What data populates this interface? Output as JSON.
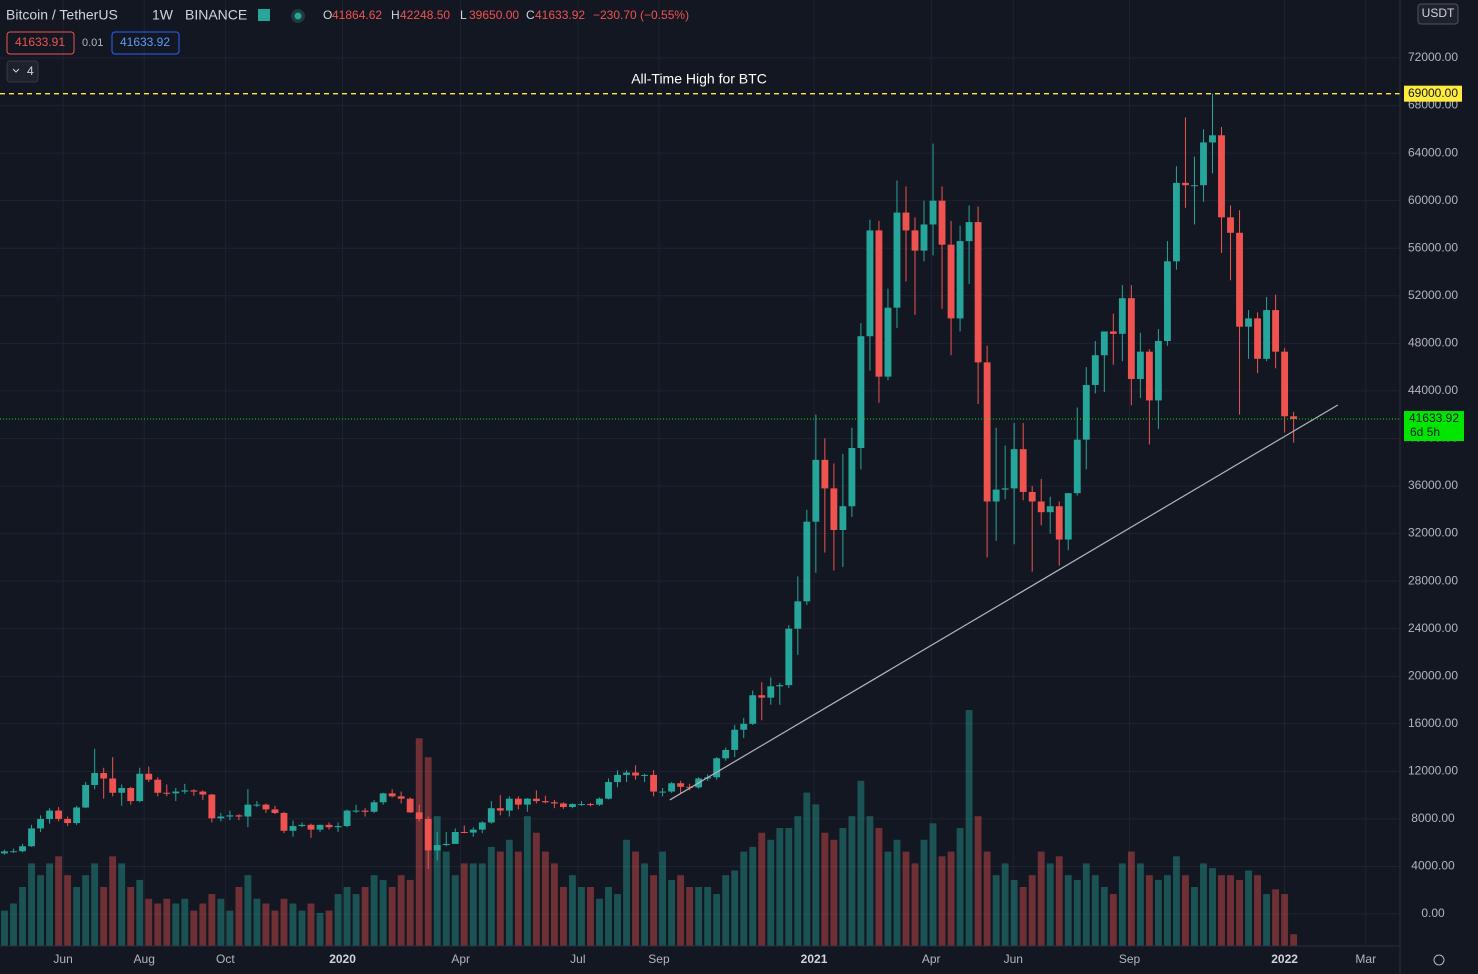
{
  "header": {
    "symbol": "Bitcoin / TetherUS",
    "interval": "1W",
    "exchange": "BINANCE",
    "ohlc": [
      [
        "O",
        "41864.62"
      ],
      [
        "H",
        "42248.50"
      ],
      [
        "L",
        "39650.00"
      ],
      [
        "C",
        "41633.92"
      ]
    ],
    "change": "−230.70 (−0.55%)",
    "bid": "41633.91",
    "spread": "0.01",
    "ask": "41633.92",
    "indicators": "4",
    "currency": "USDT",
    "countdown": "6d 5h"
  },
  "chart_data": {
    "type": "candlestick",
    "up_color": "#26a69a",
    "down_color": "#ef5350",
    "candles": [
      [
        5100,
        5400,
        5000,
        5270
      ],
      [
        5270,
        5500,
        5150,
        5280
      ],
      [
        5280,
        5900,
        5200,
        5700
      ],
      [
        5700,
        7500,
        5650,
        7200
      ],
      [
        7200,
        8300,
        6900,
        8000
      ],
      [
        8000,
        8900,
        7600,
        8700
      ],
      [
        8700,
        9000,
        7800,
        8000
      ],
      [
        8000,
        8200,
        7400,
        7650
      ],
      [
        7650,
        9100,
        7500,
        8960
      ],
      [
        8960,
        11100,
        8900,
        10850
      ],
      [
        10850,
        13900,
        10500,
        11860
      ],
      [
        11860,
        12300,
        9700,
        11400
      ],
      [
        11400,
        13200,
        9900,
        10200
      ],
      [
        10200,
        10900,
        9100,
        10600
      ],
      [
        10600,
        10700,
        9200,
        9500
      ],
      [
        9500,
        12300,
        9400,
        11800
      ],
      [
        11800,
        12400,
        11100,
        11300
      ],
      [
        11300,
        11500,
        9900,
        10200
      ],
      [
        10200,
        10900,
        9900,
        10150
      ],
      [
        10150,
        10600,
        9500,
        10300
      ],
      [
        10300,
        10950,
        10100,
        10400
      ],
      [
        10400,
        10500,
        9950,
        10300
      ],
      [
        10300,
        10400,
        9600,
        10050
      ],
      [
        10050,
        10100,
        7700,
        8050
      ],
      [
        8050,
        8500,
        7800,
        8200
      ],
      [
        8200,
        8700,
        7900,
        8300
      ],
      [
        8300,
        8400,
        7900,
        8200
      ],
      [
        8200,
        10500,
        7300,
        9200
      ],
      [
        9200,
        9500,
        9000,
        9200
      ],
      [
        9200,
        9300,
        8500,
        8800
      ],
      [
        8800,
        9100,
        8400,
        8500
      ],
      [
        8500,
        8600,
        6800,
        7000
      ],
      [
        7000,
        7850,
        6500,
        7400
      ],
      [
        7400,
        7700,
        7300,
        7500
      ],
      [
        7500,
        7600,
        6400,
        7100
      ],
      [
        7100,
        7500,
        6900,
        7500
      ],
      [
        7500,
        7700,
        7100,
        7300
      ],
      [
        7300,
        7700,
        6900,
        7400
      ],
      [
        7400,
        8800,
        7300,
        8700
      ],
      [
        8700,
        9200,
        8500,
        8700
      ],
      [
        8700,
        8900,
        8200,
        8600
      ],
      [
        8600,
        9600,
        8500,
        9400
      ],
      [
        9400,
        10200,
        9200,
        10150
      ],
      [
        10150,
        10500,
        9800,
        9900
      ],
      [
        9900,
        10300,
        9300,
        9700
      ],
      [
        9700,
        9800,
        8500,
        8550
      ],
      [
        8550,
        9200,
        7800,
        8000
      ],
      [
        8000,
        8200,
        3800,
        5350
      ],
      [
        5350,
        6900,
        4500,
        5800
      ],
      [
        5800,
        6900,
        5700,
        5900
      ],
      [
        5900,
        7200,
        5900,
        6900
      ],
      [
        6900,
        7450,
        6800,
        6850
      ],
      [
        6850,
        7300,
        6500,
        7100
      ],
      [
        7100,
        7800,
        6800,
        7700
      ],
      [
        7700,
        9500,
        7600,
        8900
      ],
      [
        8900,
        10000,
        8300,
        8700
      ],
      [
        8700,
        9900,
        8200,
        9700
      ],
      [
        9700,
        9900,
        8800,
        9200
      ],
      [
        9200,
        9750,
        8600,
        9700
      ],
      [
        9700,
        10400,
        9300,
        9500
      ],
      [
        9500,
        9950,
        9300,
        9400
      ],
      [
        9400,
        9600,
        8900,
        9300
      ],
      [
        9300,
        9400,
        8850,
        9000
      ],
      [
        9000,
        9300,
        8900,
        9250
      ],
      [
        9250,
        9500,
        9100,
        9250
      ],
      [
        9250,
        9350,
        9050,
        9200
      ],
      [
        9200,
        9800,
        9100,
        9700
      ],
      [
        9700,
        11400,
        9650,
        11100
      ],
      [
        11100,
        12100,
        10650,
        11700
      ],
      [
        11700,
        12100,
        11100,
        11900
      ],
      [
        11900,
        12500,
        11300,
        11650
      ],
      [
        11650,
        11800,
        11100,
        11700
      ],
      [
        11700,
        12100,
        9900,
        10300
      ],
      [
        10300,
        10600,
        9900,
        10300
      ],
      [
        10300,
        11100,
        10200,
        11000
      ],
      [
        11000,
        11200,
        10150,
        10700
      ],
      [
        10700,
        10950,
        10400,
        10650
      ],
      [
        10650,
        11500,
        10550,
        11400
      ],
      [
        11400,
        11750,
        11200,
        11500
      ],
      [
        11500,
        13200,
        11300,
        13100
      ],
      [
        13100,
        14000,
        12900,
        13800
      ],
      [
        13800,
        15900,
        13200,
        15500
      ],
      [
        15500,
        16500,
        14800,
        16000
      ],
      [
        16000,
        18800,
        15900,
        18400
      ],
      [
        18400,
        19500,
        16300,
        18200
      ],
      [
        18200,
        19900,
        17600,
        19150
      ],
      [
        19150,
        19450,
        17600,
        19250
      ],
      [
        19250,
        24300,
        19000,
        24000
      ],
      [
        24000,
        28400,
        21800,
        26300
      ],
      [
        26300,
        34000,
        26000,
        33000
      ],
      [
        33000,
        42000,
        28700,
        38200
      ],
      [
        38200,
        40000,
        30400,
        35800
      ],
      [
        35800,
        37900,
        28900,
        32300
      ],
      [
        32300,
        38700,
        29200,
        34300
      ],
      [
        34300,
        40900,
        33400,
        39200
      ],
      [
        39200,
        49700,
        37400,
        48600
      ],
      [
        48600,
        58400,
        45700,
        57500
      ],
      [
        57500,
        58300,
        43000,
        45200
      ],
      [
        45200,
        52600,
        44900,
        51000
      ],
      [
        51000,
        61700,
        49300,
        59000
      ],
      [
        59000,
        61200,
        53200,
        57500
      ],
      [
        57500,
        58600,
        50400,
        55800
      ],
      [
        55800,
        60000,
        54900,
        58000
      ],
      [
        58000,
        64800,
        55400,
        60000
      ],
      [
        60000,
        61200,
        50900,
        56300
      ],
      [
        56300,
        58300,
        47000,
        50100
      ],
      [
        50100,
        57900,
        49000,
        56600
      ],
      [
        56600,
        59600,
        53000,
        58200
      ],
      [
        58200,
        59500,
        42900,
        46400
      ],
      [
        46400,
        47800,
        30000,
        34700
      ],
      [
        34700,
        40900,
        31400,
        35700
      ],
      [
        35700,
        39400,
        34900,
        35800
      ],
      [
        35800,
        41300,
        31100,
        39100
      ],
      [
        39100,
        41300,
        34800,
        35500
      ],
      [
        35500,
        36000,
        28800,
        34700
      ],
      [
        34700,
        36600,
        32700,
        33800
      ],
      [
        33800,
        35100,
        32000,
        34300
      ],
      [
        34300,
        34700,
        29300,
        31500
      ],
      [
        31500,
        35400,
        30600,
        35400
      ],
      [
        35400,
        42600,
        35200,
        39900
      ],
      [
        39900,
        46000,
        37400,
        44500
      ],
      [
        44500,
        48200,
        43800,
        47000
      ],
      [
        47000,
        49000,
        43900,
        49000
      ],
      [
        49000,
        50500,
        46200,
        48800
      ],
      [
        48800,
        52900,
        46500,
        51800
      ],
      [
        51800,
        52900,
        42800,
        45000
      ],
      [
        45000,
        48900,
        43400,
        47300
      ],
      [
        47300,
        47500,
        39500,
        43200
      ],
      [
        43200,
        49200,
        40800,
        48200
      ],
      [
        48200,
        56600,
        47800,
        54900
      ],
      [
        54900,
        62900,
        54200,
        61500
      ],
      [
        61500,
        67000,
        59400,
        61300
      ],
      [
        61300,
        63700,
        58000,
        61300
      ],
      [
        61300,
        66000,
        59900,
        64900
      ],
      [
        64900,
        69000,
        62300,
        65500
      ],
      [
        65500,
        66200,
        55600,
        58600
      ],
      [
        58600,
        59600,
        53300,
        57300
      ],
      [
        57300,
        59200,
        42000,
        49400
      ],
      [
        49400,
        50800,
        46700,
        50100
      ],
      [
        50100,
        50600,
        45500,
        46700
      ],
      [
        46700,
        51900,
        46500,
        50800
      ],
      [
        50800,
        52100,
        45900,
        47300
      ],
      [
        47300,
        47600,
        40500,
        41864.62
      ],
      [
        41864.62,
        42248.5,
        39650,
        41633.92
      ]
    ],
    "volume": [
      15,
      18,
      25,
      35,
      30,
      35,
      38,
      30,
      25,
      30,
      35,
      25,
      38,
      35,
      25,
      28,
      20,
      18,
      20,
      18,
      20,
      15,
      18,
      22,
      20,
      15,
      25,
      30,
      20,
      18,
      15,
      20,
      18,
      15,
      18,
      14,
      15,
      22,
      25,
      22,
      25,
      30,
      28,
      25,
      30,
      28,
      88,
      80,
      55,
      40,
      30,
      35,
      35,
      35,
      42,
      40,
      45,
      40,
      55,
      48,
      40,
      35,
      25,
      30,
      25,
      25,
      20,
      25,
      22,
      45,
      40,
      35,
      30,
      40,
      28,
      30,
      25,
      25,
      25,
      22,
      30,
      32,
      40,
      42,
      48,
      45,
      50,
      50,
      55,
      65,
      60,
      48,
      45,
      50,
      55,
      70,
      55,
      50,
      40,
      45,
      40,
      35,
      45,
      52,
      38,
      40,
      50,
      100,
      55,
      40,
      30,
      35,
      28,
      25,
      30,
      40,
      35,
      38,
      30,
      28,
      35,
      30,
      25,
      22,
      35,
      40,
      35,
      30,
      28,
      30,
      38,
      30,
      25,
      35,
      33,
      30,
      30,
      28,
      32,
      30,
      22,
      24,
      22,
      5
    ],
    "xlim": [
      -0.5,
      154.8
    ],
    "xticks": [
      {
        "value": 6.5,
        "label": "Jun"
      },
      {
        "value": 15.5,
        "label": "Aug"
      },
      {
        "value": 24.5,
        "label": "Oct"
      },
      {
        "value": 37.5,
        "label": "2020"
      },
      {
        "value": 50.6,
        "label": "Apr"
      },
      {
        "value": 63.6,
        "label": "Jul"
      },
      {
        "value": 72.6,
        "label": "Sep"
      },
      {
        "value": 89.8,
        "label": "2021"
      },
      {
        "value": 102.8,
        "label": "Apr"
      },
      {
        "value": 111.9,
        "label": "Jun"
      },
      {
        "value": 124.8,
        "label": "Sep"
      },
      {
        "value": 142.0,
        "label": "2022"
      },
      {
        "value": 151.0,
        "label": "Mar"
      }
    ],
    "ylim": [
      -2690,
      76880
    ],
    "yticks": [
      {
        "value": 0,
        "label": "0.00"
      },
      {
        "value": 4000,
        "label": "4000.00"
      },
      {
        "value": 8000,
        "label": "8000.00"
      },
      {
        "value": 12000,
        "label": "12000.00"
      },
      {
        "value": 16000,
        "label": "16000.00"
      },
      {
        "value": 20000,
        "label": "20000.00"
      },
      {
        "value": 24000,
        "label": "24000.00"
      },
      {
        "value": 28000,
        "label": "28000.00"
      },
      {
        "value": 32000,
        "label": "32000.00"
      },
      {
        "value": 36000,
        "label": "36000.00"
      },
      {
        "value": 40000,
        "label": "40000.00"
      },
      {
        "value": 44000,
        "label": "44000.00"
      },
      {
        "value": 48000,
        "label": "48000.00"
      },
      {
        "value": 52000,
        "label": "52000.00"
      },
      {
        "value": 56000,
        "label": "56000.00"
      },
      {
        "value": 60000,
        "label": "60000.00"
      },
      {
        "value": 64000,
        "label": "64000.00"
      },
      {
        "value": 68000,
        "label": "68000.00"
      },
      {
        "value": 72000,
        "label": "72000.00"
      }
    ],
    "grid": true,
    "ath_line": {
      "value": 69000,
      "label": "69000.00",
      "annotation": "All-Time High for BTC",
      "color": "#ffeb3b"
    },
    "last_price": {
      "value": 41633.92,
      "label": "41633.92",
      "color": "#00e600"
    },
    "trendline": {
      "x": [
        73.8,
        147.9
      ],
      "y": [
        9595,
        42816
      ],
      "color": "#b2b5be"
    }
  }
}
